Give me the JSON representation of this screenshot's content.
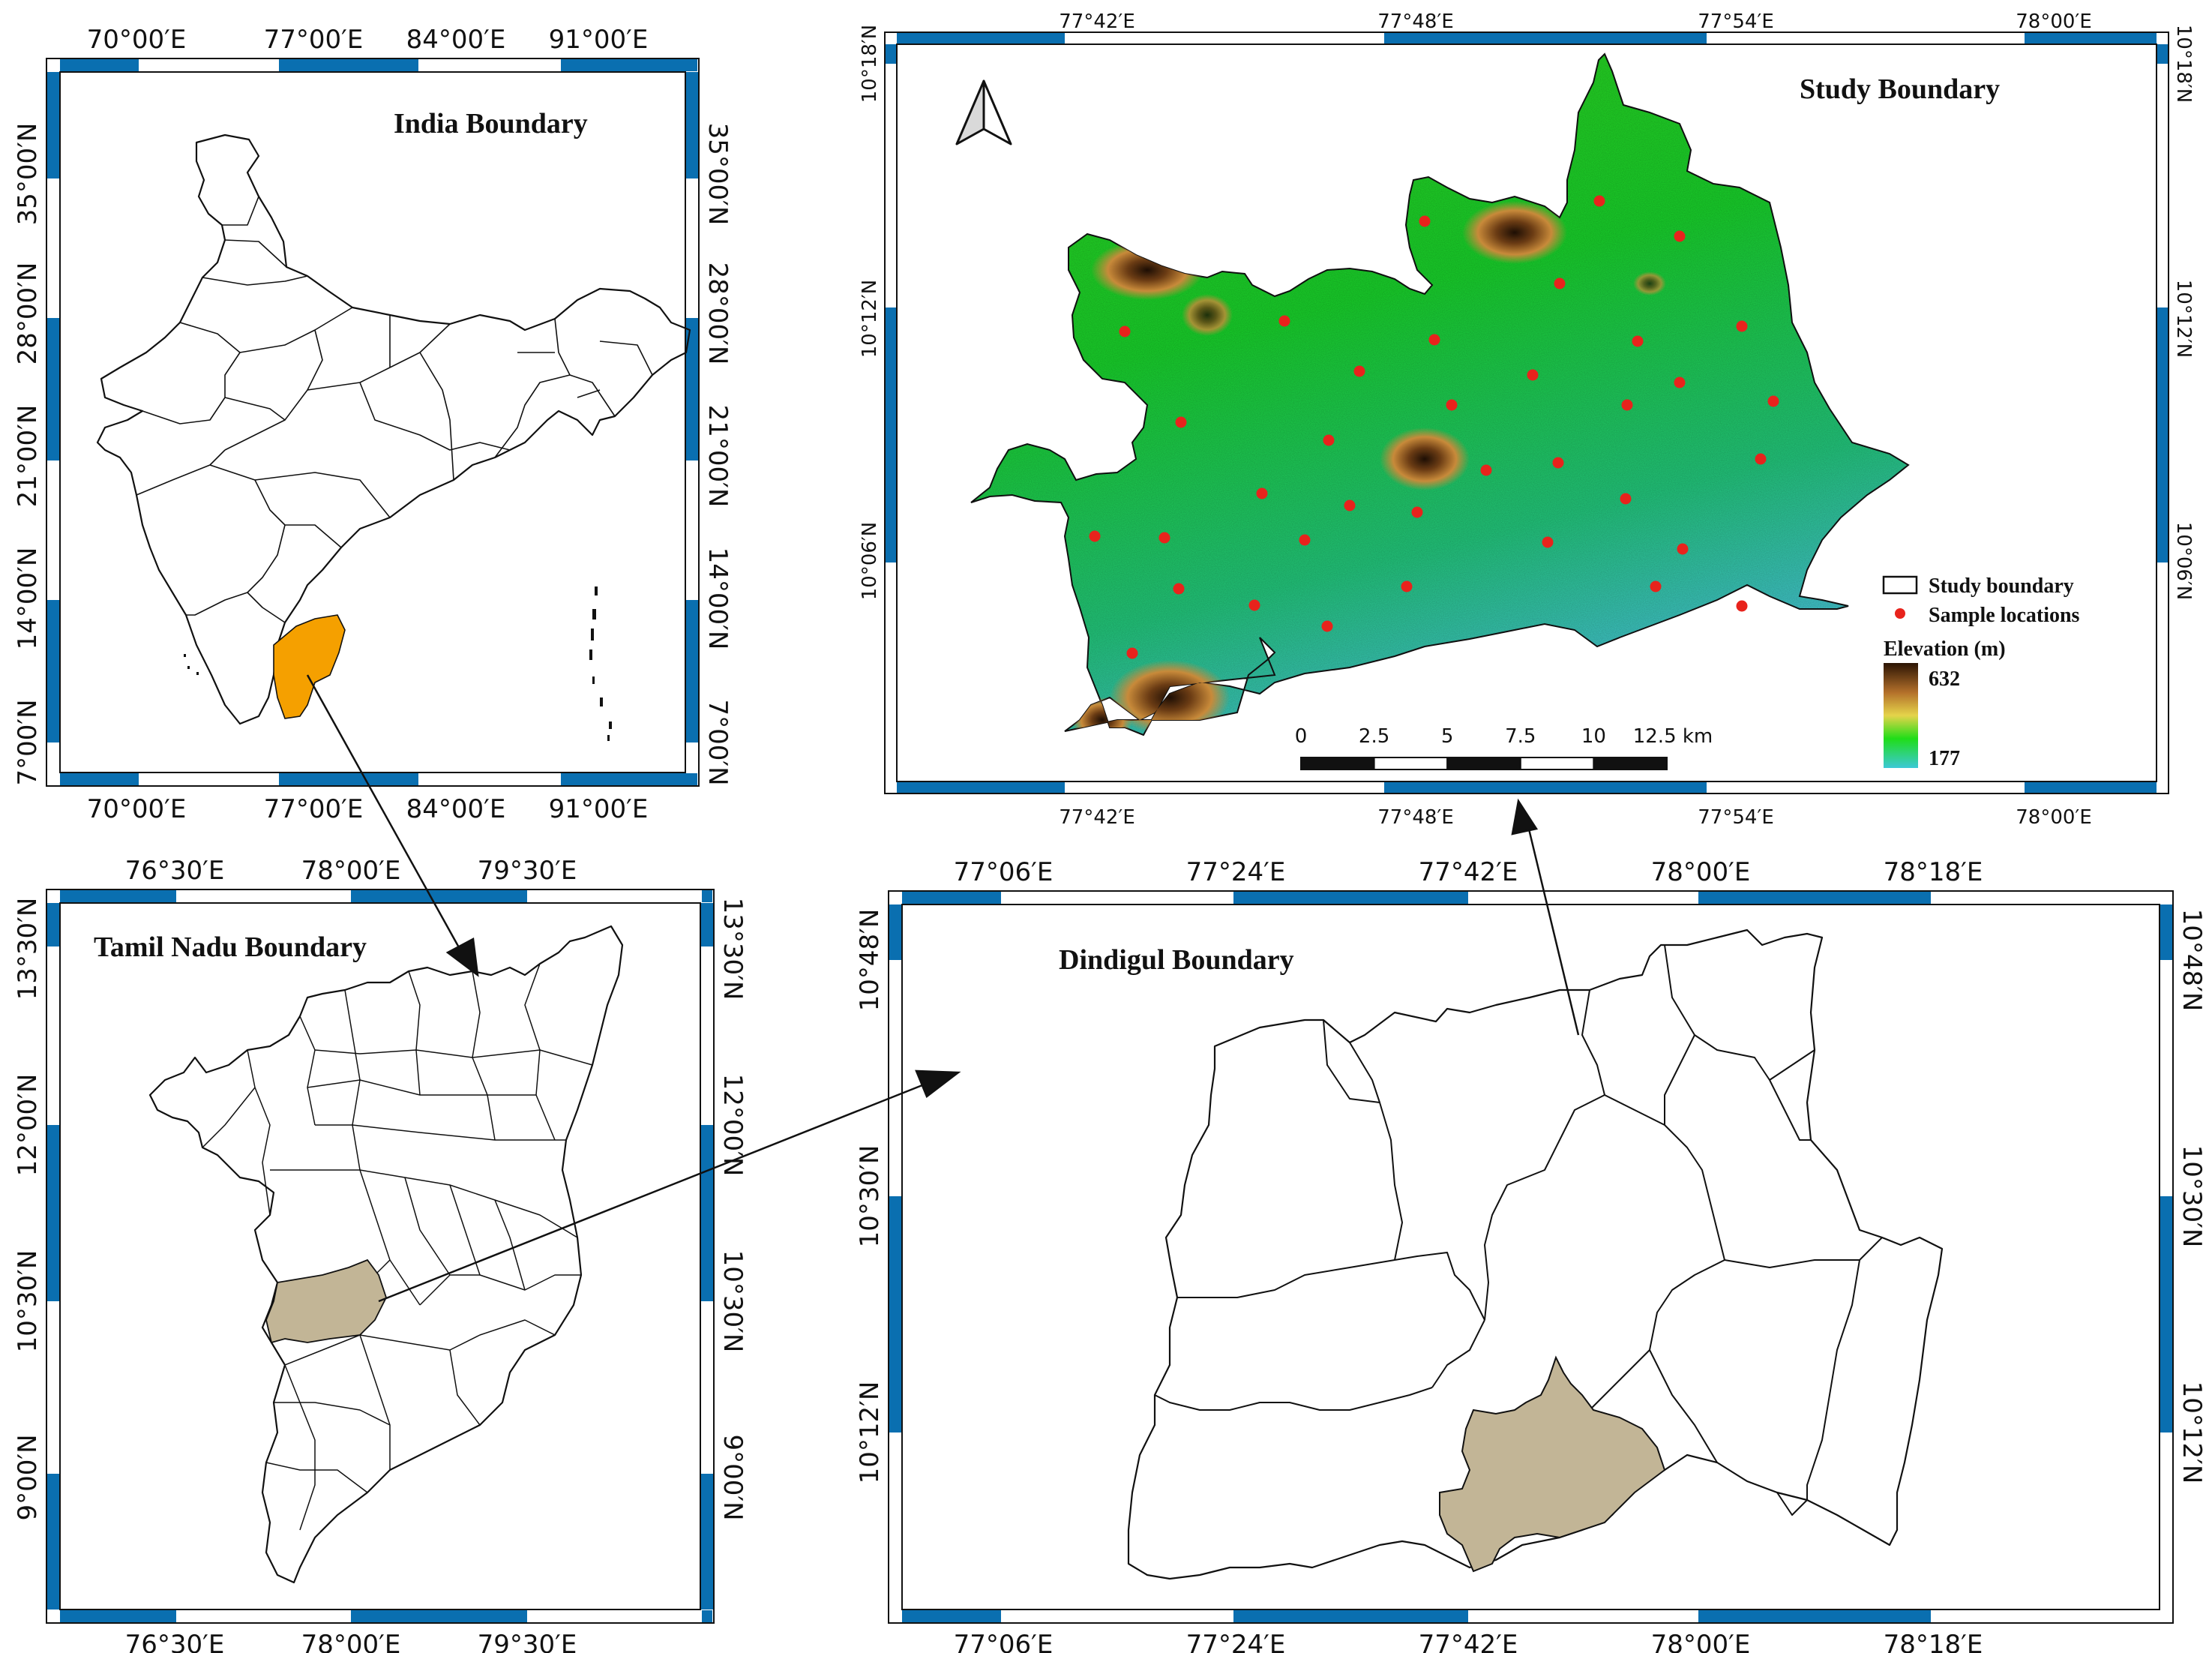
{
  "colors": {
    "frame_blue": "#0a6fb0",
    "highlight_orange": "#f5a000",
    "highlight_tan": "#c2b596",
    "sample_red": "#e8231c",
    "terrain_low": "#3fd0c8",
    "terrain_mid": "#18d41a",
    "terrain_high": "#3b2208"
  },
  "icons": {
    "north_arrow": "north-arrow-icon"
  },
  "india": {
    "title": "India Boundary",
    "lon_ticks": [
      "70°00′E",
      "77°00′E",
      "84°00′E",
      "91°00′E"
    ],
    "lat_ticks": [
      "35°00′N",
      "28°00′N",
      "21°00′N",
      "14°00′N",
      "7°00′N"
    ]
  },
  "tamil_nadu": {
    "title": "Tamil Nadu Boundary",
    "lon_ticks": [
      "76°30′E",
      "78°00′E",
      "79°30′E"
    ],
    "lat_ticks": [
      "13°30′N",
      "12°00′N",
      "10°30′N",
      "9°00′N"
    ]
  },
  "dindigul": {
    "title": "Dindigul Boundary",
    "lon_ticks": [
      "77°06′E",
      "77°24′E",
      "77°42′E",
      "78°00′E",
      "78°18′E"
    ],
    "lat_ticks": [
      "10°48′N",
      "10°30′N",
      "10°12′N"
    ]
  },
  "study": {
    "title": "Study Boundary",
    "lon_ticks": [
      "77°42′E",
      "77°48′E",
      "77°54′E",
      "78°00′E"
    ],
    "lat_ticks": [
      "10°18′N",
      "10°12′N",
      "10°06′N"
    ],
    "legend": {
      "boundary_label": "Study boundary",
      "samples_label": "Sample locations",
      "elevation_title": "Elevation (m)",
      "elev_max": "632",
      "elev_min": "177"
    },
    "scale": {
      "ticks": [
        "0",
        "2.5",
        "5",
        "7.5",
        "10",
        "12.5 km"
      ]
    }
  }
}
